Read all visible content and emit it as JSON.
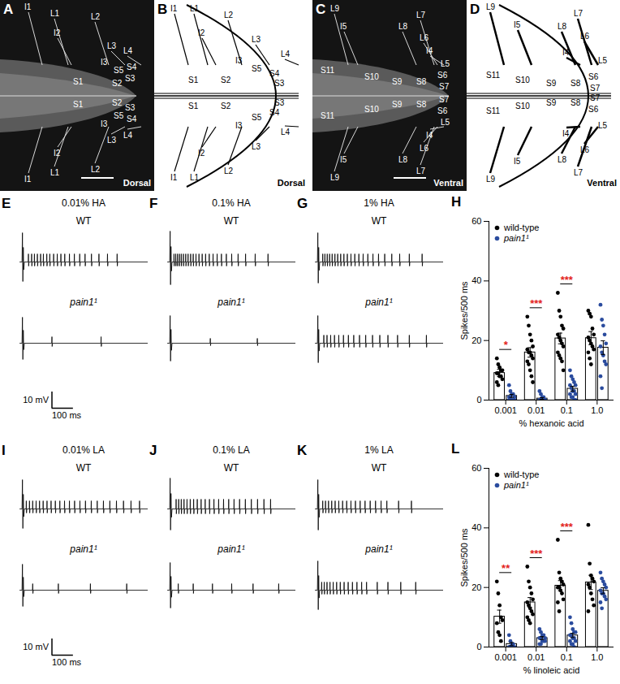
{
  "panels": [
    {
      "letter": "A",
      "kind": "image",
      "view": "Dorsal",
      "top_labels": [
        "I1",
        "L1",
        "L2",
        "I2",
        "L3",
        "L4",
        "I3",
        "S1",
        "S5",
        "S4",
        "S3",
        "S2"
      ],
      "bottom_labels": [
        "S2",
        "S4",
        "S1",
        "S5",
        "S3",
        "L4",
        "I3",
        "I2",
        "L3",
        "L2",
        "L1",
        "I1"
      ]
    },
    {
      "letter": "B",
      "kind": "diagram",
      "view": "Dorsal",
      "top_labels": [
        "I1",
        "L1",
        "L2",
        "I2",
        "L3",
        "I3",
        "L4",
        "S1",
        "S2",
        "S5",
        "S4",
        "S3"
      ],
      "bottom_labels": [
        "S1",
        "S2",
        "S3",
        "S4",
        "S5",
        "L4",
        "I3",
        "L3",
        "I2",
        "L2",
        "I1",
        "L1"
      ]
    },
    {
      "letter": "C",
      "kind": "image",
      "view": "Ventral",
      "top_labels": [
        "L9",
        "I5",
        "L7",
        "L8",
        "L6",
        "S11",
        "I4",
        "S10",
        "L5",
        "S9",
        "S8",
        "S6",
        "S7"
      ],
      "bottom_labels": [
        "S9",
        "S8",
        "S7",
        "S6",
        "S10",
        "L5",
        "L6",
        "I4",
        "S11",
        "L7",
        "I5",
        "L8",
        "L9"
      ]
    },
    {
      "letter": "D",
      "kind": "diagram",
      "view": "Ventral",
      "top_labels": [
        "L9",
        "I5",
        "L7",
        "L8",
        "L6",
        "I4",
        "L5",
        "S11",
        "S10",
        "S9",
        "S8",
        "S6",
        "S7"
      ],
      "bottom_labels": [
        "S7",
        "S6",
        "L5",
        "S9",
        "S8",
        "S11",
        "S10",
        "L6",
        "I4",
        "L7",
        "I5",
        "L8",
        "L9"
      ]
    },
    {
      "letter": "E",
      "kind": "traces",
      "title": "0.01% HA",
      "xlim": [
        0,
        600
      ],
      "ylim": [
        -20,
        20
      ],
      "traces": [
        {
          "label": "WT",
          "artifact_mV": [
            18,
            -12
          ],
          "spike_mV": 5,
          "spike_times_ms": [
            40,
            55,
            68,
            82,
            97,
            110,
            126,
            140,
            158,
            175,
            192,
            210,
            232,
            255,
            280,
            305,
            335,
            370,
            410,
            455
          ]
        },
        {
          "label": "pain1¹",
          "artifact_mV": [
            16,
            -10
          ],
          "spike_mV": 4,
          "spike_times_ms": [
            150,
            380
          ]
        }
      ],
      "scale_bar": {
        "y": {
          "value": 10,
          "label": "10 mV"
        },
        "x": {
          "value": 100,
          "label": "100 ms"
        }
      }
    },
    {
      "letter": "F",
      "kind": "traces",
      "title": "0.1% HA",
      "xlim": [
        0,
        600
      ],
      "ylim": [
        -20,
        20
      ],
      "traces": [
        {
          "label": "WT",
          "artifact_mV": [
            19,
            -14
          ],
          "spike_mV": 5,
          "spike_times_ms": [
            30,
            38,
            46,
            55,
            64,
            74,
            85,
            96,
            108,
            120,
            133,
            147,
            162,
            178,
            195,
            213,
            232,
            252,
            275,
            300,
            330,
            365,
            410,
            470
          ]
        },
        {
          "label": "pain1¹",
          "artifact_mV": [
            17,
            -11
          ],
          "spike_mV": 3,
          "spike_times_ms": [
            200,
            420
          ]
        }
      ]
    },
    {
      "letter": "G",
      "kind": "traces",
      "title": "1% HA",
      "xlim": [
        0,
        600
      ],
      "ylim": [
        -20,
        20
      ],
      "traces": [
        {
          "label": "WT",
          "artifact_mV": [
            18,
            -13
          ],
          "spike_mV": 5,
          "spike_times_ms": [
            35,
            45,
            56,
            67,
            79,
            92,
            105,
            119,
            134,
            150,
            167,
            185,
            204,
            224,
            246,
            270,
            296,
            325,
            358,
            395,
            440,
            500
          ]
        },
        {
          "label": "pain1¹",
          "artifact_mV": [
            17,
            -12
          ],
          "spike_mV": 5,
          "spike_times_ms": [
            40,
            55,
            72,
            90,
            110,
            132,
            155,
            180,
            207,
            236,
            268,
            302,
            340,
            385,
            440,
            520
          ]
        }
      ]
    },
    {
      "letter": "I",
      "kind": "traces",
      "title": "0.01% LA",
      "xlim": [
        0,
        600
      ],
      "ylim": [
        -20,
        20
      ],
      "traces": [
        {
          "label": "WT",
          "artifact_mV": [
            18,
            -12
          ],
          "spike_mV": 5,
          "spike_times_ms": [
            30,
            45,
            60,
            76,
            92,
            109,
            127,
            146,
            166,
            187,
            209,
            232,
            256,
            281,
            307,
            334,
            362,
            391,
            421,
            452,
            485,
            520,
            560
          ]
        },
        {
          "label": "pain1¹",
          "artifact_mV": [
            16,
            -10
          ],
          "spike_mV": 4,
          "spike_times_ms": [
            60,
            180,
            330,
            500
          ]
        }
      ],
      "scale_bar": {
        "y": {
          "value": 10,
          "label": "10 mV"
        },
        "x": {
          "value": 100,
          "label": "100 ms"
        }
      }
    },
    {
      "letter": "J",
      "kind": "traces",
      "title": "0.1% LA",
      "xlim": [
        0,
        600
      ],
      "ylim": [
        -20,
        20
      ],
      "traces": [
        {
          "label": "WT",
          "artifact_mV": [
            19,
            -13
          ],
          "spike_mV": 6,
          "spike_times_ms": [
            40,
            52,
            64,
            77,
            91,
            106,
            122,
            139,
            157,
            176,
            196,
            217,
            239,
            262,
            286,
            311,
            337,
            364,
            392,
            421,
            451,
            482
          ]
        },
        {
          "label": "pain1¹",
          "artifact_mV": [
            17,
            -11
          ],
          "spike_mV": 4,
          "spike_times_ms": [
            50,
            120,
            210,
            300,
            400,
            520
          ]
        }
      ]
    },
    {
      "letter": "K",
      "kind": "traces",
      "title": "1% LA",
      "xlim": [
        0,
        600
      ],
      "ylim": [
        -20,
        20
      ],
      "traces": [
        {
          "label": "WT",
          "artifact_mV": [
            18,
            -13
          ],
          "spike_mV": 5,
          "spike_times_ms": [
            35,
            48,
            62,
            77,
            93,
            110,
            128,
            147,
            167,
            188,
            210,
            233,
            257,
            282,
            308,
            335,
            390,
            450
          ]
        },
        {
          "label": "pain1¹",
          "artifact_mV": [
            18,
            -12
          ],
          "spike_mV": 5,
          "spike_times_ms": [
            30,
            42,
            55,
            69,
            84,
            100,
            117,
            135,
            154,
            174,
            195,
            217,
            240,
            290,
            340,
            400,
            470
          ]
        }
      ]
    }
  ],
  "chart_data": [
    {
      "letter": "H",
      "type": "bar",
      "categories": [
        "0.001",
        "0.01",
        "0.1",
        "1.0"
      ],
      "x_label": "% hexanoic acid",
      "y_label": "Spikes/500 ms",
      "ylim": [
        0,
        60
      ],
      "yticks": [
        0,
        20,
        40,
        60
      ],
      "legend": "top-left",
      "series": [
        {
          "name": "wild-type",
          "color": "#000000",
          "values": [
            9.1,
            16.0,
            20.7,
            20.8
          ],
          "error": [
            1.2,
            1.6,
            1.8,
            2.2
          ],
          "points": [
            [
              14,
              12,
              11,
              10,
              10,
              9,
              9,
              8,
              8,
              7,
              6,
              5
            ],
            [
              28,
              25,
              22,
              20,
              18,
              17,
              16,
              16,
              15,
              14,
              13,
              12,
              10,
              8,
              6
            ],
            [
              36,
              30,
              28,
              25,
              24,
              22,
              21,
              20,
              19,
              18,
              16,
              15,
              14,
              13,
              10
            ],
            [
              30,
              29,
              28,
              24,
              22,
              21,
              20,
              19,
              18,
              17,
              16,
              14,
              12
            ]
          ]
        },
        {
          "name": "pain1¹",
          "color": "#2b4c9e",
          "values": [
            1.4,
            0.5,
            3.8,
            17.6
          ],
          "error": [
            0.5,
            0.3,
            0.8,
            2.3
          ],
          "points": [
            [
              5,
              3,
              2,
              2,
              1,
              1,
              1,
              0,
              0,
              0,
              0
            ],
            [
              3,
              2,
              1,
              1,
              0,
              0,
              0,
              0,
              0,
              0,
              0,
              0,
              0,
              0
            ],
            [
              10,
              8,
              7,
              6,
              5,
              5,
              4,
              3,
              3,
              2,
              2,
              1,
              1,
              0,
              0
            ],
            [
              32,
              27,
              25,
              22,
              19,
              18,
              16,
              15,
              13,
              12,
              8,
              4
            ]
          ]
        }
      ],
      "significance": [
        "*",
        "***",
        "***",
        null
      ]
    },
    {
      "letter": "L",
      "type": "bar",
      "categories": [
        "0.001",
        "0.01",
        "0.1",
        "1.0"
      ],
      "x_label": "% linoleic acid",
      "y_label": "Spikes/500 ms",
      "ylim": [
        0,
        60
      ],
      "yticks": [
        0,
        20,
        40,
        60
      ],
      "legend": "top-left",
      "series": [
        {
          "name": "wild-type",
          "color": "#000000",
          "values": [
            10.2,
            15.0,
            20.6,
            21.7
          ],
          "error": [
            2.2,
            1.6,
            1.7,
            2.4
          ],
          "points": [
            [
              22,
              18,
              14,
              10,
              9,
              8,
              5,
              4,
              2
            ],
            [
              27,
              22,
              20,
              18,
              16,
              15,
              14,
              13,
              12,
              11,
              10,
              9,
              8
            ],
            [
              36,
              25,
              23,
              22,
              21,
              20,
              20,
              19,
              18,
              16,
              15,
              12
            ],
            [
              41,
              28,
              24,
              23,
              22,
              21,
              20,
              18,
              16,
              14,
              12
            ]
          ]
        },
        {
          "name": "pain1¹",
          "color": "#2b4c9e",
          "values": [
            1.0,
            3.0,
            3.9,
            18.9
          ],
          "error": [
            0.5,
            0.5,
            0.7,
            1.0
          ],
          "points": [
            [
              4,
              2,
              1,
              1,
              0,
              0,
              0,
              0
            ],
            [
              6,
              5,
              4,
              4,
              3,
              3,
              3,
              2,
              2,
              2,
              1,
              1
            ],
            [
              10,
              8,
              6,
              5,
              5,
              4,
              4,
              3,
              3,
              2,
              2,
              1,
              1,
              0
            ],
            [
              25,
              23,
              22,
              21,
              20,
              19,
              18,
              18,
              17,
              16,
              15,
              13
            ]
          ]
        }
      ],
      "significance": [
        "**",
        "***",
        "***",
        null
      ]
    }
  ]
}
